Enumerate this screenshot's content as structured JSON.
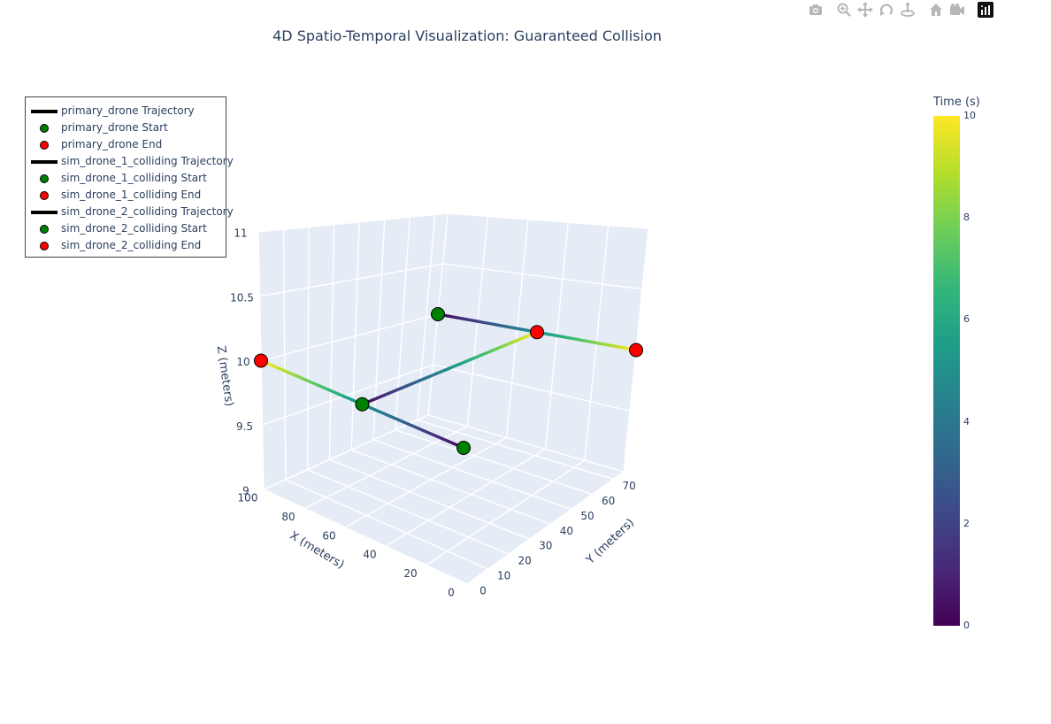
{
  "title": "4D Spatio-Temporal Visualization: Guaranteed Collision",
  "modebar": {
    "buttons": [
      {
        "name": "camera-icon",
        "tip": "Download plot as a png"
      },
      {
        "name": "zoom-icon",
        "tip": "Zoom"
      },
      {
        "name": "pan-icon",
        "tip": "Pan"
      },
      {
        "name": "orbit-rotation-icon",
        "tip": "Orbital rotation"
      },
      {
        "name": "turntable-rotation-icon",
        "tip": "Turntable rotation"
      },
      {
        "name": "home-icon",
        "tip": "Reset camera to default"
      },
      {
        "name": "camera-last-save-icon",
        "tip": "Reset camera to last save"
      },
      {
        "name": "plotly-logo-icon",
        "tip": "Produced with Plotly"
      }
    ]
  },
  "legend": {
    "items": [
      {
        "label": "primary_drone Trajectory",
        "symbol": "line"
      },
      {
        "label": "primary_drone Start",
        "symbol": "start"
      },
      {
        "label": "primary_drone End",
        "symbol": "end"
      },
      {
        "label": "sim_drone_1_colliding Trajectory",
        "symbol": "line"
      },
      {
        "label": "sim_drone_1_colliding Start",
        "symbol": "start"
      },
      {
        "label": "sim_drone_1_colliding End",
        "symbol": "end"
      },
      {
        "label": "sim_drone_2_colliding Trajectory",
        "symbol": "line"
      },
      {
        "label": "sim_drone_2_colliding Start",
        "symbol": "start"
      },
      {
        "label": "sim_drone_2_colliding End",
        "symbol": "end"
      }
    ]
  },
  "colors": {
    "start_marker": "#008000",
    "end_marker": "#ff0000",
    "marker_outline": "#000000",
    "scene_background": "#e5ecf6",
    "grid": "#ffffff",
    "colorscale": [
      "#440154",
      "#482878",
      "#3e4989",
      "#31688e",
      "#26828e",
      "#1f9e89",
      "#35b779",
      "#6ece58",
      "#b5de2b",
      "#fde725"
    ]
  },
  "chart_data": {
    "type": "scatter3d",
    "title": "4D Spatio-Temporal Visualization: Guaranteed Collision",
    "axes": {
      "x": {
        "label": "X (meters)",
        "range": [
          0,
          100
        ],
        "ticks": [
          0,
          20,
          40,
          60,
          80,
          100
        ]
      },
      "y": {
        "label": "Y (meters)",
        "range": [
          0,
          75
        ],
        "ticks": [
          0,
          10,
          20,
          30,
          40,
          50,
          60,
          70
        ]
      },
      "z": {
        "label": "Z (meters)",
        "range": [
          9,
          11
        ],
        "ticks": [
          9,
          9.5,
          10,
          10.5,
          11
        ],
        "tick_labels": [
          "9",
          "9.5",
          "10",
          "10.5",
          "11"
        ]
      }
    },
    "colorbar": {
      "title": "Time (s)",
      "range": [
        0,
        10
      ],
      "ticks": [
        0,
        2,
        4,
        6,
        8,
        10
      ],
      "colorscale": "Viridis"
    },
    "series": [
      {
        "name": "primary_drone",
        "start": {
          "x": 0,
          "y": 0,
          "z": 10,
          "t": 0
        },
        "end": {
          "x": 100,
          "y": 0,
          "z": 10,
          "t": 10
        }
      },
      {
        "name": "sim_drone_1_colliding",
        "start": {
          "x": 50,
          "y": 0,
          "z": 10,
          "t": 0
        },
        "end": {
          "x": 50,
          "y": 75,
          "z": 10,
          "t": 10
        }
      },
      {
        "name": "sim_drone_2_colliding",
        "start": {
          "x": 100,
          "y": 75,
          "z": 10,
          "t": 0
        },
        "end": {
          "x": 0,
          "y": 75,
          "z": 10,
          "t": 10
        }
      }
    ]
  }
}
